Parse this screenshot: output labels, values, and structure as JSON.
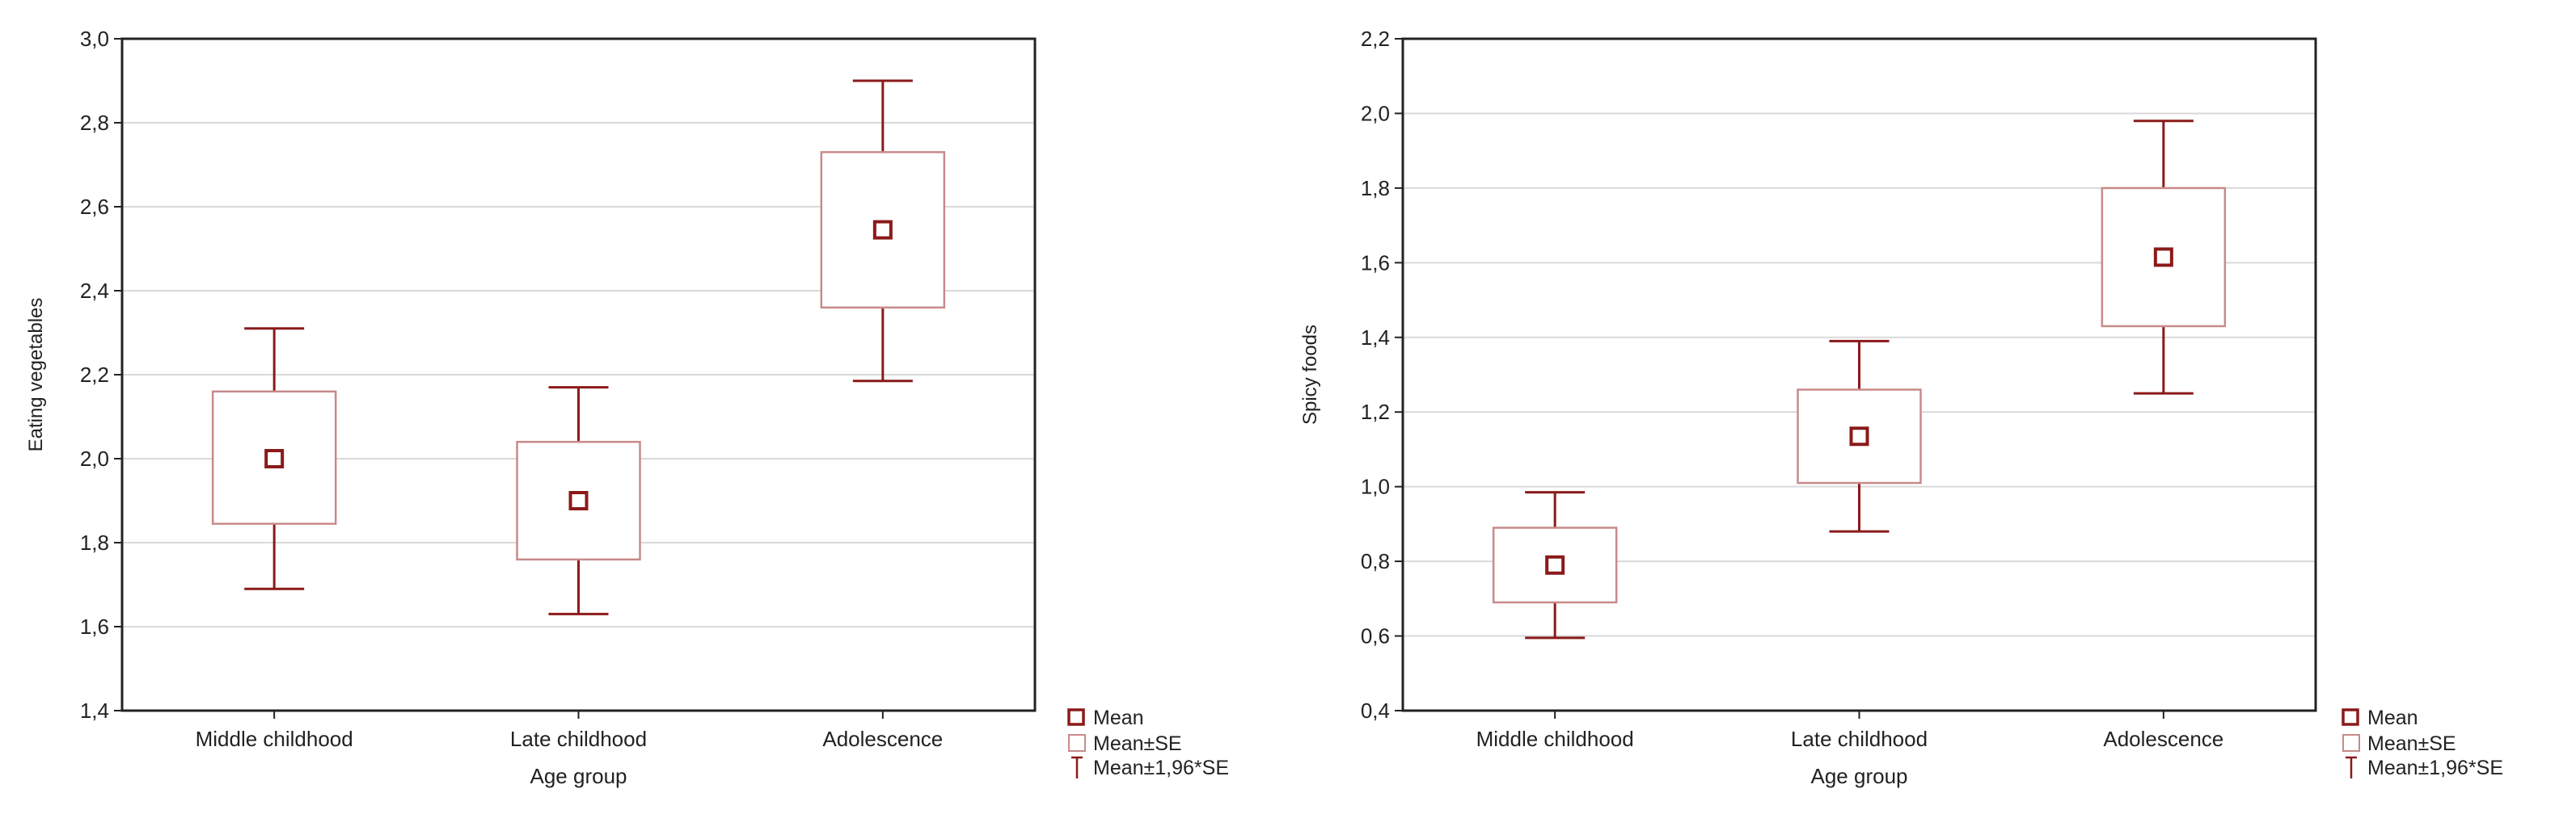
{
  "colors": {
    "mark": "#8b1a1a",
    "se_box": "#c98a8a",
    "grid": "#d9d9d9",
    "frame": "#222222"
  },
  "chart_data": [
    {
      "type": "box",
      "xlabel": "Age group",
      "ylabel": "Eating vegetables",
      "categories": [
        "Middle childhood",
        "Late childhood",
        "Adolescence"
      ],
      "ylim": [
        1.4,
        3.0
      ],
      "yticks": [
        "1,4",
        "1,6",
        "1,8",
        "2,0",
        "2,2",
        "2,4",
        "2,6",
        "2,8",
        "3,0"
      ],
      "grid": true,
      "legend_position": "right-bottom",
      "series": [
        {
          "category": "Middle childhood",
          "mean": 2.0,
          "se_low": 1.845,
          "se_high": 2.16,
          "ci_low": 1.69,
          "ci_high": 2.31
        },
        {
          "category": "Late childhood",
          "mean": 1.9,
          "se_low": 1.76,
          "se_high": 2.04,
          "ci_low": 1.63,
          "ci_high": 2.17
        },
        {
          "category": "Adolescence",
          "mean": 2.545,
          "se_low": 2.36,
          "se_high": 2.73,
          "ci_low": 2.185,
          "ci_high": 2.9
        }
      ]
    },
    {
      "type": "box",
      "xlabel": "Age group",
      "ylabel": "Spicy foods",
      "categories": [
        "Middle childhood",
        "Late childhood",
        "Adolescence"
      ],
      "ylim": [
        0.4,
        2.2
      ],
      "yticks": [
        "0,4",
        "0,6",
        "0,8",
        "1,0",
        "1,2",
        "1,4",
        "1,6",
        "1,8",
        "2,0",
        "2,2"
      ],
      "grid": true,
      "legend_position": "right-bottom",
      "series": [
        {
          "category": "Middle childhood",
          "mean": 0.79,
          "se_low": 0.69,
          "se_high": 0.89,
          "ci_low": 0.595,
          "ci_high": 0.985
        },
        {
          "category": "Late childhood",
          "mean": 1.135,
          "se_low": 1.01,
          "se_high": 1.26,
          "ci_low": 0.88,
          "ci_high": 1.39
        },
        {
          "category": "Adolescence",
          "mean": 1.615,
          "se_low": 1.43,
          "se_high": 1.8,
          "ci_low": 1.25,
          "ci_high": 1.98
        }
      ]
    }
  ],
  "legend": {
    "mean": "Mean",
    "se": "Mean±SE",
    "ci": "Mean±1,96*SE"
  }
}
